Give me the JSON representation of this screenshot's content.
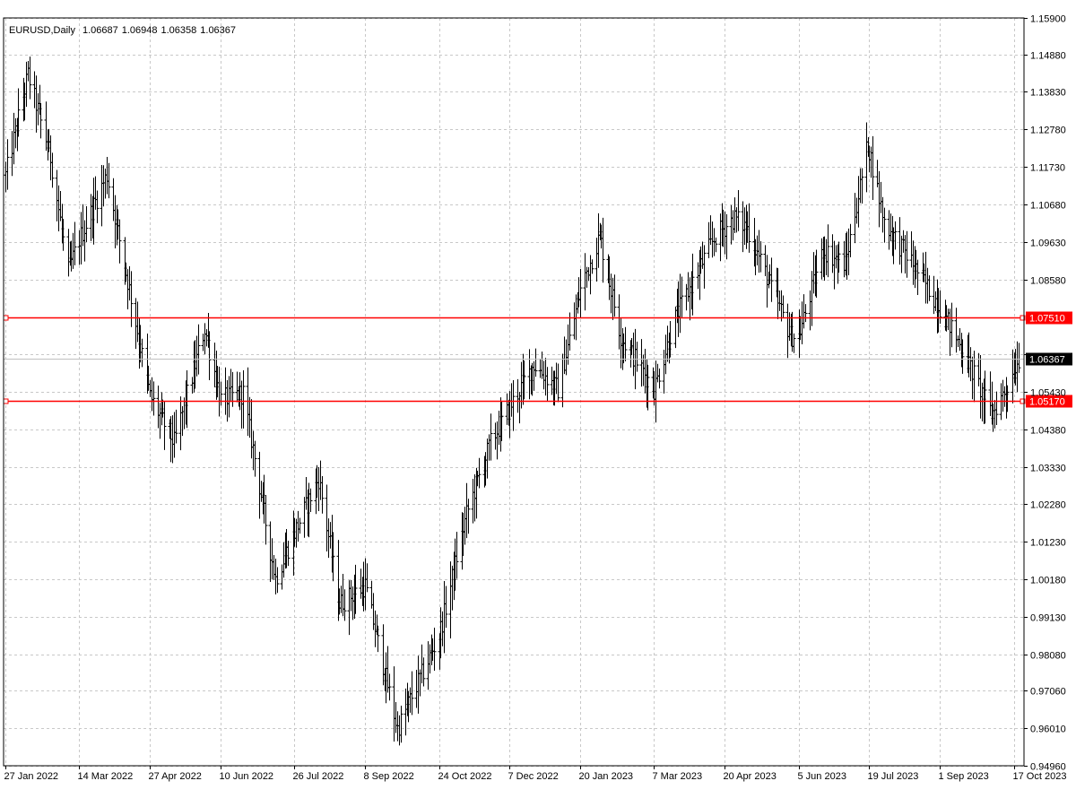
{
  "chart_data": {
    "type": "ohlc",
    "symbol_header": "EURUSD,Daily",
    "last_bar_ohlc": [
      "1.06687",
      "1.06948",
      "1.06358",
      "1.06367"
    ],
    "ylim": [
      0.9496,
      1.159
    ],
    "y_ticks": [
      "1.15900",
      "1.14880",
      "1.13830",
      "1.12780",
      "1.11730",
      "1.10680",
      "1.09630",
      "1.08580",
      "1.06480",
      "1.05430",
      "1.04380",
      "1.03330",
      "1.02280",
      "1.01230",
      "1.00180",
      "0.99130",
      "0.98080",
      "0.97060",
      "0.96010",
      "0.94960"
    ],
    "x_ticks": [
      "27 Jan 2022",
      "14 Mar 2022",
      "27 Apr 2022",
      "10 Jun 2022",
      "26 Jul 2022",
      "8 Sep 2022",
      "24 Oct 2022",
      "7 Dec 2022",
      "20 Jan 2023",
      "7 Mar 2023",
      "20 Apr 2023",
      "5 Jun 2023",
      "19 Jul 2023",
      "1 Sep 2023",
      "17 Oct 2023"
    ],
    "x_range": [
      "2022-01-27",
      "2023-10-20"
    ],
    "grid": true,
    "current_price": {
      "label": "1.06367",
      "value": 1.06367
    },
    "levels": [
      {
        "label": "1.07510",
        "value": 1.0751,
        "color": "#ff0000"
      },
      {
        "label": "1.05170",
        "value": 1.0517,
        "color": "#ff0000"
      }
    ],
    "price_path": [
      [
        "2022-01-27",
        1.115
      ],
      [
        "2022-02-10",
        1.143
      ],
      [
        "2022-02-24",
        1.12
      ],
      [
        "2022-03-07",
        1.088
      ],
      [
        "2022-03-14",
        1.097
      ],
      [
        "2022-03-31",
        1.115
      ],
      [
        "2022-04-14",
        1.083
      ],
      [
        "2022-04-27",
        1.053
      ],
      [
        "2022-05-12",
        1.04
      ],
      [
        "2022-05-31",
        1.072
      ],
      [
        "2022-06-10",
        1.052
      ],
      [
        "2022-06-24",
        1.054
      ],
      [
        "2022-07-14",
        1.002
      ],
      [
        "2022-07-26",
        1.015
      ],
      [
        "2022-08-10",
        1.03
      ],
      [
        "2022-08-23",
        0.995
      ],
      [
        "2022-09-08",
        1.0
      ],
      [
        "2022-09-28",
        0.96
      ],
      [
        "2022-10-10",
        0.972
      ],
      [
        "2022-10-24",
        0.986
      ],
      [
        "2022-11-10",
        1.02
      ],
      [
        "2022-11-25",
        1.04
      ],
      [
        "2022-12-07",
        1.05
      ],
      [
        "2022-12-22",
        1.062
      ],
      [
        "2023-01-06",
        1.055
      ],
      [
        "2023-01-20",
        1.083
      ],
      [
        "2023-02-01",
        1.098
      ],
      [
        "2023-02-14",
        1.07
      ],
      [
        "2023-03-07",
        1.055
      ],
      [
        "2023-03-20",
        1.075
      ],
      [
        "2023-04-14",
        1.098
      ],
      [
        "2023-04-26",
        1.103
      ],
      [
        "2023-05-04",
        1.1
      ],
      [
        "2023-05-31",
        1.07
      ],
      [
        "2023-06-05",
        1.07
      ],
      [
        "2023-06-20",
        1.094
      ],
      [
        "2023-07-04",
        1.09
      ],
      [
        "2023-07-18",
        1.124
      ],
      [
        "2023-07-28",
        1.102
      ],
      [
        "2023-08-15",
        1.09
      ],
      [
        "2023-09-01",
        1.078
      ],
      [
        "2023-09-15",
        1.066
      ],
      [
        "2023-10-03",
        1.048
      ],
      [
        "2023-10-12",
        1.055
      ],
      [
        "2023-10-20",
        1.06367
      ]
    ]
  }
}
